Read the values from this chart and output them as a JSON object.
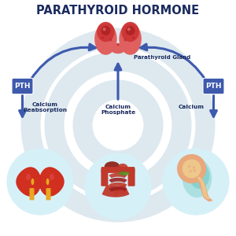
{
  "title": "PARATHYROID HORMONE",
  "title_color": "#1a2a5e",
  "title_fontsize": 10.5,
  "bg_color": "#ffffff",
  "pth_label": "PTH",
  "pth_bg_color": "#3d5aad",
  "pth_text_color": "#ffffff",
  "arrow_color": "#3d5aad",
  "label_color": "#1a2a5e",
  "parathyroid_gland_label": "Parathyroid Gland",
  "calcium_reabsorption_label": "Calcium\nReabsorption",
  "calcium_phosphate_label": "Calcium\nPhosphate",
  "calcium_label": "Calcium",
  "circle_color": "#d6f0f8",
  "thyroid_main_color": "#cc3333",
  "thyroid_spot_color": "#aa2222",
  "thyroid_pink": "#e06060",
  "kidney_dark": "#c0231b",
  "kidney_mid": "#d13020",
  "kidney_ureter": "#e8a820",
  "bone_outer": "#e8a87c",
  "bone_inner": "#f0d090",
  "bone_teal": "#7ecece",
  "bone_teal2": "#a8dede",
  "intestine_red": "#c0392b",
  "intestine_dark": "#9b2020",
  "watermark_color": "#dde8ef",
  "arrow_lw": 2.2
}
